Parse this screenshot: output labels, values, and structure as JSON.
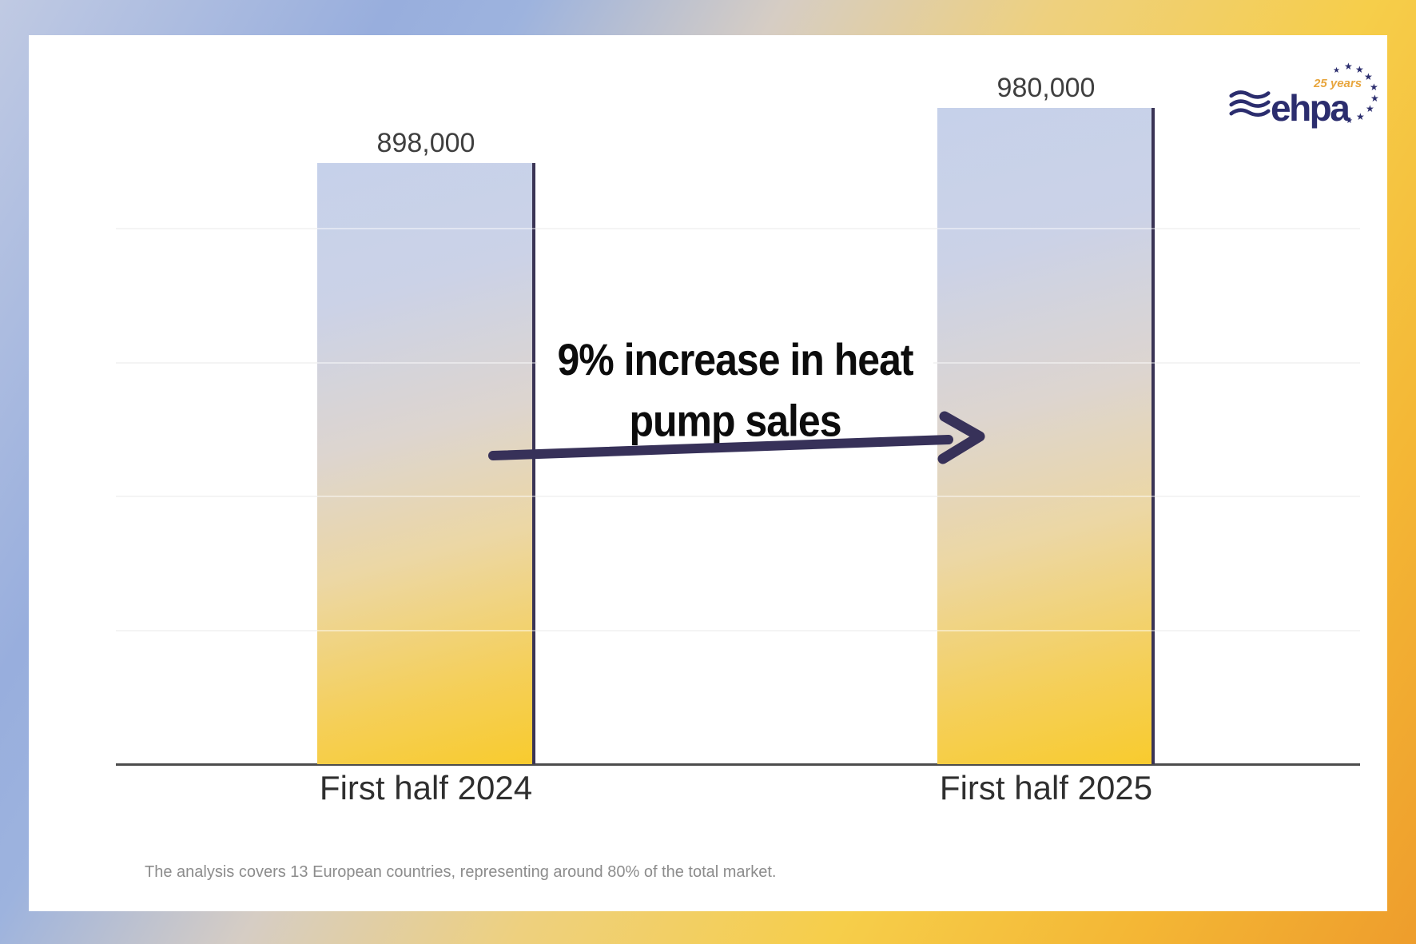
{
  "chart_data": {
    "type": "bar",
    "title": "",
    "categories": [
      "First half 2024",
      "First half 2025"
    ],
    "values": [
      898000,
      980000
    ],
    "value_labels": [
      "898,000",
      "980,000"
    ],
    "xlabel": "",
    "ylabel": "",
    "ylim": [
      0,
      1000000
    ],
    "gridline_values": [
      200000,
      400000,
      600000,
      800000
    ],
    "grid": true,
    "legend": "none",
    "annotation": "9% increase in heat pump sales"
  },
  "annotation": {
    "line1": "9% increase in heat",
    "line2": "pump sales"
  },
  "footnote": "The analysis covers 13 European countries, representing around 80% of the total market.",
  "logo": {
    "brand": "ehpa",
    "anniversary": "25 years"
  },
  "colors": {
    "navy": "#2b2d6e",
    "badge_gold": "#e8a63e",
    "arrow": "#373159",
    "bar_top": "#c6d1ea",
    "bar_bottom": "#f8cb2e",
    "gridline": "#ececec",
    "axis": "#4c4c4c"
  }
}
